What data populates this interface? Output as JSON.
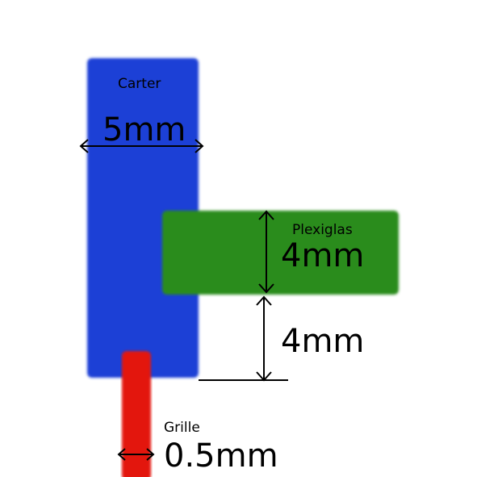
{
  "parts": {
    "carter": {
      "label": "Carter",
      "color": "#1f3fd6"
    },
    "plexiglas": {
      "label": "Plexiglas",
      "color": "#2a8c1e"
    },
    "grille": {
      "label": "Grille",
      "color": "#e3140c"
    }
  },
  "dimensions": {
    "carter_width": "5mm",
    "plexiglas_thickness": "4mm",
    "gap_height": "4mm",
    "grille_width": "0.5mm"
  },
  "line_color": "#000000"
}
